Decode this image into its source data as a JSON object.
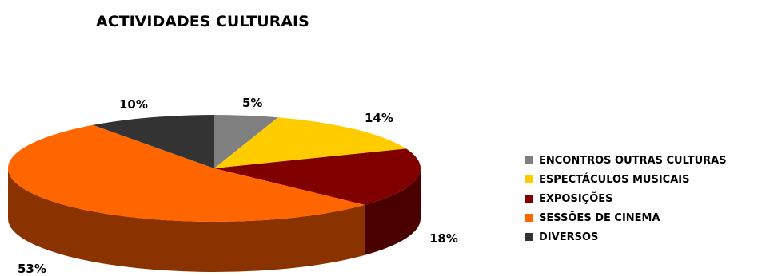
{
  "chart_data": {
    "type": "pie",
    "style": "3d",
    "title": "ACTIVIDADES CULTURAIS",
    "legend_position": "right",
    "slices": [
      {
        "label": "ENCONTROS OUTRAS CULTURAS",
        "value": 5,
        "value_label": "5%",
        "color": "#808080",
        "side_color": "#505050"
      },
      {
        "label": "ESPECTÁCULOS MUSICAIS",
        "value": 14,
        "value_label": "14%",
        "color": "#FFCC00",
        "side_color": "#B08C00"
      },
      {
        "label": "EXPOSIÇÕES",
        "value": 18,
        "value_label": "18%",
        "color": "#800000",
        "side_color": "#4A0000"
      },
      {
        "label": "SESSÕES DE CINEMA",
        "value": 53,
        "value_label": "53%",
        "color": "#FF6600",
        "side_color": "#8A3300"
      },
      {
        "label": "DIVERSOS",
        "value": 10,
        "value_label": "10%",
        "color": "#333333",
        "side_color": "#1A1A1A"
      }
    ]
  }
}
